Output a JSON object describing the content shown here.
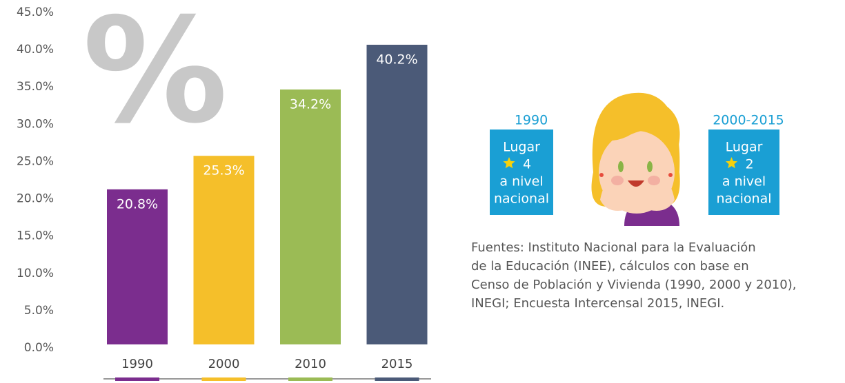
{
  "chart_data": {
    "type": "bar",
    "watermark": "%",
    "categories": [
      "1990",
      "2000",
      "2010",
      "2015"
    ],
    "values": [
      20.8,
      25.3,
      34.2,
      40.2
    ],
    "value_labels": [
      "20.8%",
      "25.3%",
      "34.2%",
      "40.2%"
    ],
    "colors": [
      "#7b2d8e",
      "#f5bf2a",
      "#9bbb55",
      "#4b5a78"
    ],
    "ylim": [
      0,
      45
    ],
    "yticks": [
      {
        "value": 0,
        "label": "0.0%"
      },
      {
        "value": 5,
        "label": "5.0%"
      },
      {
        "value": 10,
        "label": "10.0%"
      },
      {
        "value": 15,
        "label": "15.0%"
      },
      {
        "value": 20,
        "label": "20.0%"
      },
      {
        "value": 25,
        "label": "25.0%"
      },
      {
        "value": 30,
        "label": "30.0%"
      },
      {
        "value": 35,
        "label": "35.0%"
      },
      {
        "value": 40,
        "label": "40.0%"
      },
      {
        "value": 45,
        "label": "45.0%"
      }
    ],
    "grid": false
  },
  "rankings": [
    {
      "period": "1990",
      "lines": [
        "Lugar",
        "4",
        "a nivel",
        "nacional"
      ]
    },
    {
      "period": "2000-2015",
      "lines": [
        "Lugar",
        "2",
        "a nivel",
        "nacional"
      ]
    }
  ],
  "sources": [
    "Fuentes:  Instituto Nacional para la Evaluación",
    "de la Educación (INEE), cálculos con base en",
    "Censo de Población y Vivienda (1990, 2000 y 2010),",
    "INEGI; Encuesta Intercensal 2015, INEGI."
  ]
}
